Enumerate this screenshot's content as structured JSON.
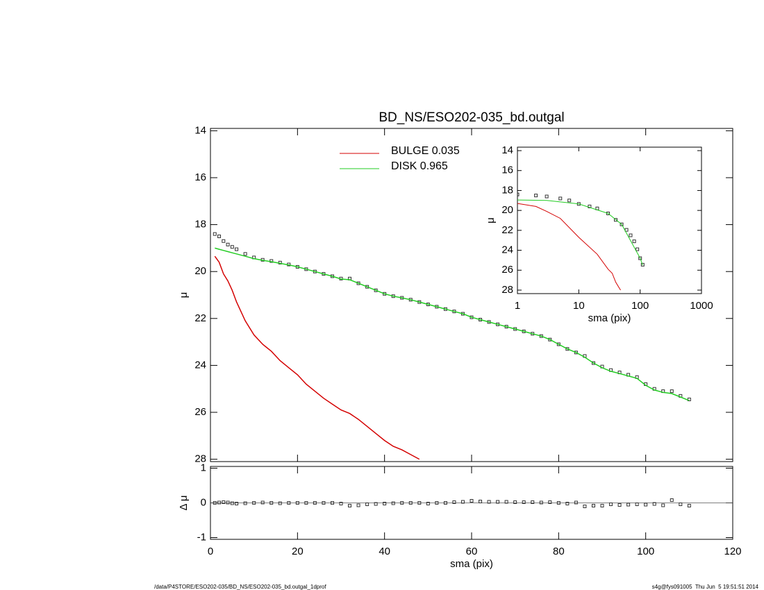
{
  "chart_data": [
    {
      "type": "line",
      "title": "BD_NS/ESO202-035_bd.outgal",
      "ylabel": "μ",
      "xlim": [
        0,
        120
      ],
      "ylim": [
        28.1,
        13.9
      ],
      "yticks": [
        14,
        16,
        18,
        20,
        22,
        24,
        26,
        28
      ],
      "legend": "top-center",
      "x": [
        1,
        2,
        3,
        4,
        5,
        6,
        8,
        10,
        12,
        14,
        16,
        18,
        20,
        22,
        24,
        26,
        28,
        30,
        32,
        34,
        36,
        38,
        40,
        42,
        44,
        46,
        48,
        50,
        52,
        54,
        56,
        58,
        60,
        62,
        64,
        66,
        68,
        70,
        72,
        74,
        76,
        78,
        80,
        82,
        84,
        86,
        88,
        90,
        92,
        94,
        96,
        98,
        100,
        102,
        104,
        106,
        108,
        110
      ],
      "series": [
        {
          "mode": "markers",
          "color": "#333333",
          "values": [
            18.4,
            18.5,
            18.7,
            18.85,
            18.95,
            19.05,
            19.25,
            19.4,
            19.5,
            19.55,
            19.62,
            19.7,
            19.8,
            19.9,
            20.0,
            20.1,
            20.2,
            20.3,
            20.3,
            20.5,
            20.65,
            20.8,
            20.95,
            21.05,
            21.12,
            21.2,
            21.3,
            21.4,
            21.5,
            21.6,
            21.7,
            21.8,
            21.95,
            22.05,
            22.15,
            22.25,
            22.35,
            22.45,
            22.55,
            22.65,
            22.75,
            22.9,
            23.1,
            23.3,
            23.45,
            23.6,
            23.9,
            24.05,
            24.2,
            24.3,
            24.4,
            24.5,
            24.8,
            25.0,
            25.1,
            25.1,
            25.3,
            25.45
          ]
        },
        {
          "mode": "lines",
          "name": "BULGE  0.035",
          "color": "#d40000",
          "values": [
            19.35,
            19.6,
            20.1,
            20.4,
            20.8,
            21.3,
            22.1,
            22.7,
            23.1,
            23.4,
            23.8,
            24.1,
            24.4,
            24.8,
            25.1,
            25.4,
            25.65,
            25.9,
            26.05,
            26.3,
            26.6,
            26.9,
            27.2,
            27.45,
            27.6,
            27.8,
            28.0,
            null,
            null,
            null,
            null,
            null,
            null,
            null,
            null,
            null,
            null,
            null,
            null,
            null,
            null,
            null,
            null,
            null,
            null,
            null,
            null,
            null,
            null,
            null,
            null,
            null,
            null,
            null,
            null,
            null,
            null,
            null
          ]
        },
        {
          "mode": "lines",
          "name": "DISK  0.965",
          "color": "#22cc22",
          "values": [
            19.0,
            19.05,
            19.1,
            19.15,
            19.2,
            19.25,
            19.35,
            19.45,
            19.52,
            19.58,
            19.65,
            19.72,
            19.8,
            19.9,
            20.0,
            20.1,
            20.2,
            20.32,
            20.35,
            20.5,
            20.65,
            20.8,
            20.95,
            21.05,
            21.12,
            21.2,
            21.3,
            21.4,
            21.5,
            21.6,
            21.7,
            21.8,
            21.95,
            22.05,
            22.15,
            22.25,
            22.35,
            22.45,
            22.55,
            22.65,
            22.75,
            22.9,
            23.1,
            23.3,
            23.45,
            23.65,
            23.9,
            24.1,
            24.25,
            24.35,
            24.45,
            24.55,
            24.85,
            25.05,
            25.15,
            25.2,
            25.35,
            25.5
          ]
        }
      ]
    },
    {
      "type": "line",
      "ylabel": "Δ μ",
      "xlabel": "sma (pix)",
      "xlim": [
        0,
        120
      ],
      "xticks": [
        0,
        20,
        40,
        60,
        80,
        100,
        120
      ],
      "ylim": [
        -1.05,
        1.05
      ],
      "yticks": [
        -1,
        0,
        1
      ],
      "reference_line": 0,
      "x": [
        1,
        2,
        3,
        4,
        5,
        6,
        8,
        10,
        12,
        14,
        16,
        18,
        20,
        22,
        24,
        26,
        28,
        30,
        32,
        34,
        36,
        38,
        40,
        42,
        44,
        46,
        48,
        50,
        52,
        54,
        56,
        58,
        60,
        62,
        64,
        66,
        68,
        70,
        72,
        74,
        76,
        78,
        80,
        82,
        84,
        86,
        88,
        90,
        92,
        94,
        96,
        98,
        100,
        102,
        104,
        106,
        108,
        110
      ],
      "series": [
        {
          "mode": "markers",
          "color": "#333333",
          "values": [
            0,
            0.01,
            0.02,
            0.01,
            -0.01,
            -0.02,
            -0.01,
            0,
            0.01,
            0,
            -0.01,
            0,
            0,
            0,
            0,
            0,
            0,
            -0.02,
            -0.08,
            -0.07,
            -0.04,
            -0.03,
            -0.02,
            -0.01,
            0,
            0,
            0,
            -0.02,
            0,
            0,
            0.02,
            0.03,
            0.06,
            0.04,
            0.03,
            0.03,
            0.03,
            0.02,
            0.02,
            0.02,
            0.01,
            0.02,
            0,
            -0.02,
            0.01,
            -0.1,
            -0.08,
            -0.08,
            -0.04,
            -0.06,
            -0.05,
            -0.04,
            -0.05,
            -0.03,
            -0.07,
            0.08,
            -0.04,
            -0.08
          ]
        }
      ]
    },
    {
      "type": "line",
      "ylabel": "μ",
      "xlabel": "sma (pix)",
      "xscale": "log",
      "xlim": [
        1,
        1000
      ],
      "xticks": [
        1,
        10,
        100,
        1000
      ],
      "ylim": [
        28.35,
        13.65
      ],
      "yticks": [
        14,
        16,
        18,
        20,
        22,
        24,
        26,
        28
      ],
      "series": [
        {
          "mode": "markers",
          "color": "#333333",
          "x": [
            1,
            2,
            3,
            5,
            7,
            10,
            15,
            20,
            30,
            40,
            50,
            60,
            70,
            80,
            90,
            100,
            110
          ],
          "values": [
            18.4,
            18.5,
            18.6,
            18.8,
            19.0,
            19.35,
            19.6,
            19.8,
            20.3,
            20.95,
            21.4,
            21.95,
            22.5,
            23.1,
            23.9,
            24.8,
            25.45
          ]
        },
        {
          "mode": "lines",
          "color": "#22cc22",
          "x": [
            1,
            3,
            10,
            30,
            50,
            100,
            110
          ],
          "values": [
            18.95,
            19.0,
            19.35,
            20.3,
            21.4,
            24.8,
            25.5
          ]
        },
        {
          "mode": "lines",
          "color": "#d40000",
          "x": [
            1,
            2,
            3,
            5,
            10,
            20,
            30,
            35,
            40,
            48
          ],
          "values": [
            19.3,
            19.6,
            20.1,
            20.8,
            22.7,
            24.4,
            25.9,
            26.3,
            27.2,
            28.0
          ]
        }
      ]
    }
  ],
  "footer": {
    "left": "/data/P4STORE/ESO202-035/BD_NS/ESO202-035_bd.outgal_1dprof",
    "right": "s4g@fys091005  Thu Jun  5 19:51:51 2014"
  }
}
